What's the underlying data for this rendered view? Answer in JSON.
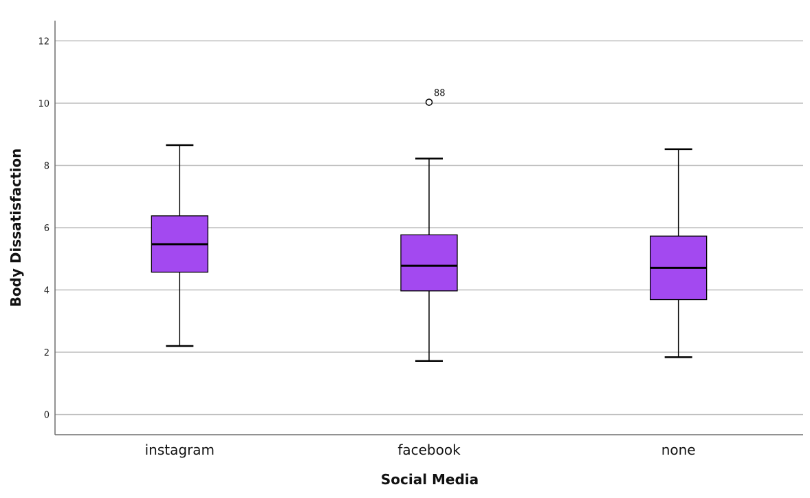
{
  "chart_data": {
    "type": "box",
    "xlabel": "Social Media",
    "ylabel": "Body Dissatisfaction",
    "ylim": [
      -0.65,
      12.65
    ],
    "yticks": [
      0,
      2,
      4,
      6,
      8,
      10,
      12
    ],
    "grid": true,
    "box_color": "#a349f0",
    "categories": [
      "instagram",
      "facebook",
      "none"
    ],
    "boxes": [
      {
        "category": "instagram",
        "min": 2.2,
        "q1": 4.57,
        "median": 5.47,
        "q3": 6.38,
        "max": 8.65,
        "outliers": []
      },
      {
        "category": "facebook",
        "min": 1.72,
        "q1": 3.97,
        "median": 4.78,
        "q3": 5.77,
        "max": 8.22,
        "outliers": [
          {
            "value": 10.03,
            "label": "88"
          }
        ]
      },
      {
        "category": "none",
        "min": 1.84,
        "q1": 3.69,
        "median": 4.71,
        "q3": 5.73,
        "max": 8.52,
        "outliers": []
      }
    ]
  }
}
